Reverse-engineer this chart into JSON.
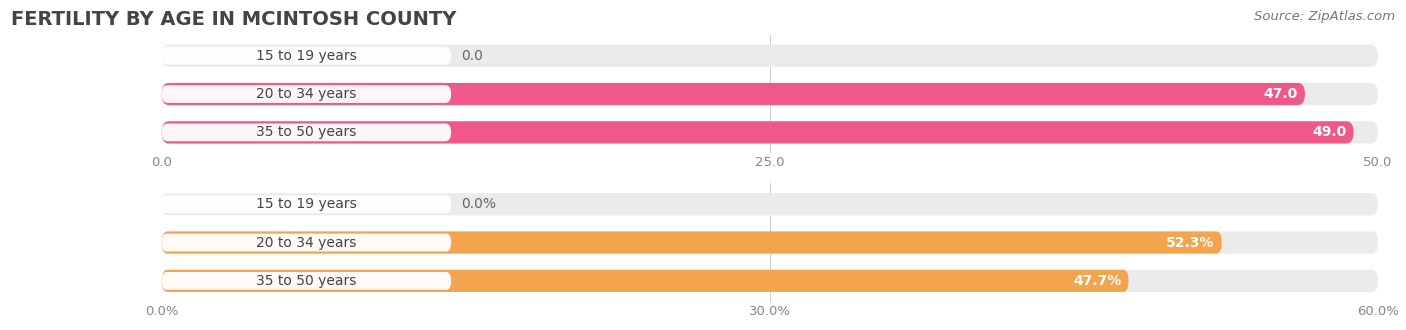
{
  "title": "FERTILITY BY AGE IN MCINTOSH COUNTY",
  "source": "Source: ZipAtlas.com",
  "top_chart": {
    "categories": [
      "15 to 19 years",
      "20 to 34 years",
      "35 to 50 years"
    ],
    "values": [
      0.0,
      47.0,
      49.0
    ],
    "xlim": [
      0,
      50
    ],
    "xticks": [
      0.0,
      25.0,
      50.0
    ],
    "xtick_labels": [
      "0.0",
      "25.0",
      "50.0"
    ],
    "bar_color": "#f0588a",
    "bar_bg_color": "#ebebeb",
    "pill_color": "#ffffff"
  },
  "bottom_chart": {
    "categories": [
      "15 to 19 years",
      "20 to 34 years",
      "35 to 50 years"
    ],
    "values": [
      0.0,
      52.3,
      47.7
    ],
    "xlim": [
      0,
      60
    ],
    "xticks": [
      0.0,
      30.0,
      60.0
    ],
    "xtick_labels": [
      "0.0%",
      "30.0%",
      "60.0%"
    ],
    "bar_color": "#f5a44e",
    "bar_bg_color": "#ebebeb",
    "pill_color": "#ffffff"
  },
  "bg_color": "#ffffff",
  "title_fontsize": 14,
  "title_color": "#444444",
  "bar_height": 0.58,
  "label_fontsize": 10,
  "value_fontsize": 10,
  "tick_fontsize": 9.5,
  "source_fontsize": 9.5,
  "source_color": "#777777",
  "tick_color": "#888888",
  "label_color": "#444444"
}
